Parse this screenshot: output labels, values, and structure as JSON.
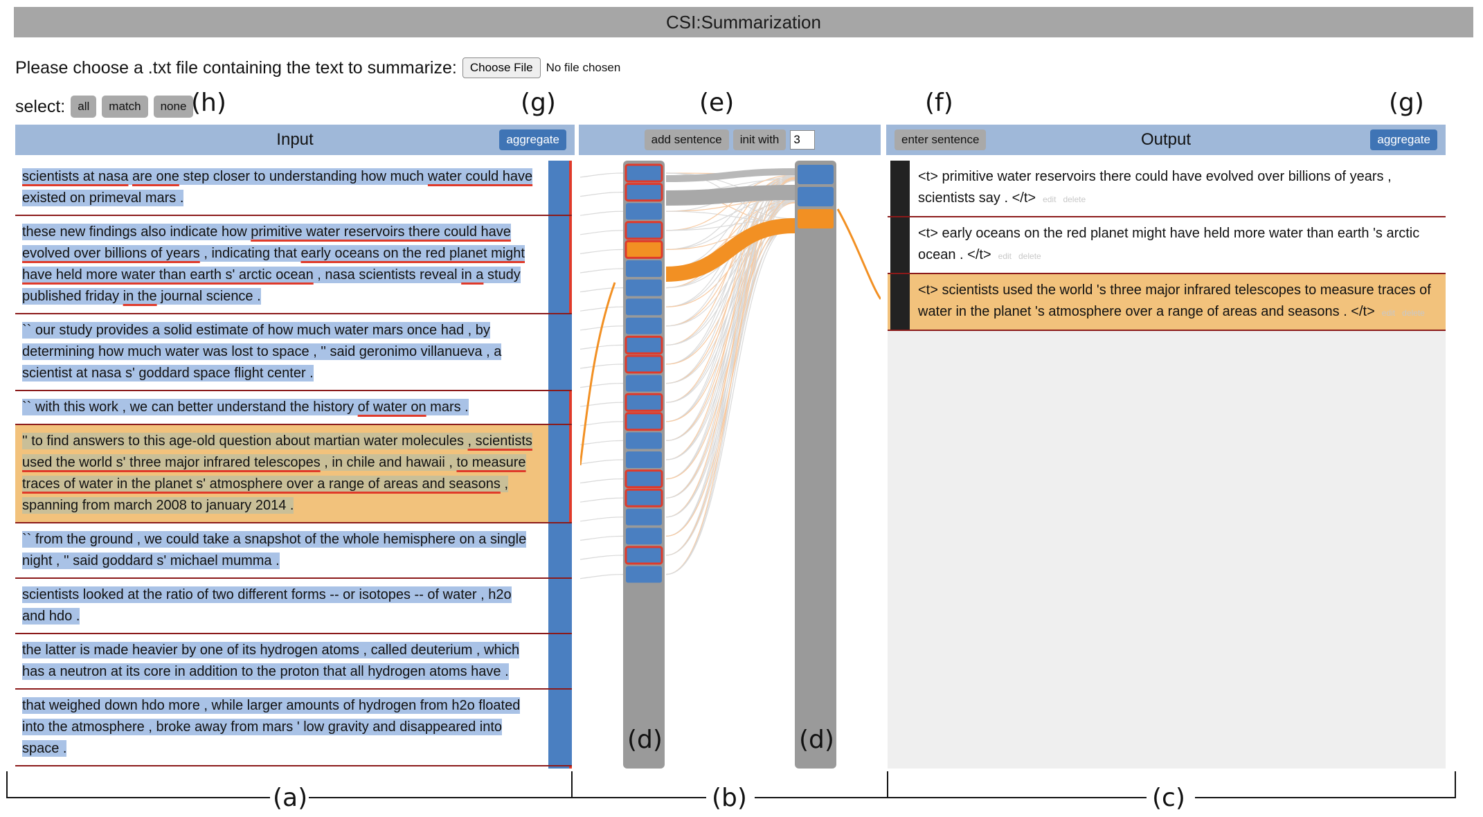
{
  "title": "CSI:Summarization",
  "file": {
    "prompt": "Please choose a .txt file containing the text to summarize:",
    "button": "Choose File",
    "status": "No file chosen"
  },
  "select": {
    "label": "select:",
    "buttons": [
      "all",
      "match",
      "none"
    ]
  },
  "annotations": {
    "h": "(h)",
    "g": "(g)",
    "e": "(e)",
    "f": "(f)",
    "d": "(d)",
    "a": "(a)",
    "b": "(b)",
    "c": "(c)"
  },
  "input": {
    "title": "Input",
    "aggregate": "aggregate",
    "sentences": [
      [
        {
          "t": "scientists at nasa",
          "u": true
        },
        {
          "t": " "
        },
        {
          "t": "are one",
          "u": true
        },
        {
          "t": " step closer to understanding how much "
        },
        {
          "t": "water could have",
          "u": true
        },
        {
          "t": " existed on primeval mars ."
        }
      ],
      [
        {
          "t": "these new findings also indicate how "
        },
        {
          "t": "primitive water reservoirs there could have evolved over billions of years",
          "u": true
        },
        {
          "t": " , indicating that "
        },
        {
          "t": "early oceans on the red planet might have held more water than earth s' arctic ocean",
          "u": true
        },
        {
          "t": " , nasa scientists reveal "
        },
        {
          "t": "in a",
          "u": true
        },
        {
          "t": " study published friday "
        },
        {
          "t": "in the",
          "u": true
        },
        {
          "t": " journal science ."
        }
      ],
      [
        {
          "t": "`` our study provides a solid estimate of how much water mars once had , by determining how much water was lost to space , '' said geronimo villanueva , a scientist at nasa s' goddard space flight center ."
        }
      ],
      [
        {
          "t": "`` with this work , we can better understand the history "
        },
        {
          "t": "of water on",
          "u": true
        },
        {
          "t": " mars ."
        }
      ],
      [
        {
          "t": "'' to find answers to this age-old question about martian water molecules "
        },
        {
          "t": ", scientists used the world s' three major infrared telescopes",
          "u": true
        },
        {
          "t": " , in chile and hawaii , "
        },
        {
          "t": "to measure traces of water in the planet s' atmosphere over a range of areas and seasons",
          "u": true
        },
        {
          "t": " , spanning from march 2008 to january 2014 ."
        }
      ],
      [
        {
          "t": "`` from the ground , we could take a snapshot of the whole hemisphere on a single night , '' said goddard s' michael mumma ."
        }
      ],
      [
        {
          "t": "scientists looked at the ratio of two different forms -- or isotopes -- of water , h2o and hdo ."
        }
      ],
      [
        {
          "t": "the latter is made heavier by one of its hydrogen atoms , called deuterium , which has a neutron at its core in addition to the proton that all hydrogen atoms have ."
        }
      ],
      [
        {
          "t": "that weighed down hdo more , while larger amounts of hydrogen from h2o floated into the atmosphere , broke away from mars ' low gravity and disappeared into space ."
        }
      ],
      [
        {
          "t": "as a result , water trapped in mars s' polar ice caps has a much higher level of hdo ."
        }
      ]
    ]
  },
  "middle": {
    "add_sentence": "add sentence",
    "init_with": "init with",
    "init_value": "3"
  },
  "output": {
    "title": "Output",
    "aggregate": "aggregate",
    "enter_sentence": "enter sentence",
    "edit": "edit",
    "delete": "delete",
    "sentences": [
      "<t> primitive water reservoirs there could have evolved over billions of years , scientists say . </t>",
      "<t> early oceans on the red planet might have held more water than earth 's arctic ocean . </t>",
      "<t> scientists used the world 's three major infrared telescopes to measure traces of water in the planet 's atmosphere over a range of areas and seasons . </t>"
    ]
  },
  "colors": {
    "header": "#9fb8d9",
    "sentence_blue": "#4a7fc1",
    "highlight_orange": "#f2c27c",
    "flow_orange": "#f29023",
    "underline_red": "#e03a2a"
  }
}
